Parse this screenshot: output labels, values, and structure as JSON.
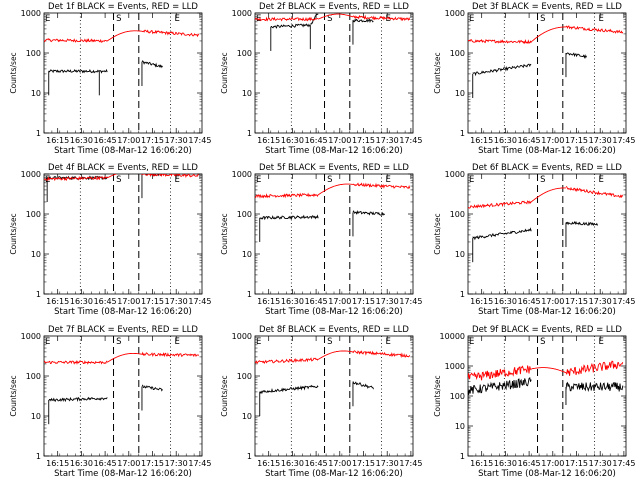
{
  "chart_data": {
    "type": "line",
    "ylabel": "Counts/sec",
    "xlabel": "Start Time (08-Mar-12 16:06:20)",
    "x_tick_labels": [
      "16:15",
      "16:30",
      "16:45",
      "17:00",
      "17:15",
      "17:30",
      "17:45"
    ],
    "x_tick_minutes": [
      8.67,
      23.67,
      38.67,
      53.67,
      68.67,
      83.67,
      98.67
    ],
    "x_range_minutes": [
      0,
      100
    ],
    "y_scale": "log",
    "y_tick_labels": [
      "1",
      "10",
      "100",
      "1000"
    ],
    "y_tick_values": [
      1,
      10,
      100,
      1000
    ],
    "grid": false,
    "dashed_marker_minutes": [
      44.0,
      60.0
    ],
    "dotted_marker_minutes": [
      23.0,
      80.0
    ],
    "marker_labels": [
      "E",
      "S",
      "E"
    ],
    "colors": {
      "events": "#000000",
      "lld": "#ff0000",
      "axes": "#000000"
    },
    "panels": [
      {
        "title": "Det 1f BLACK = Events, RED = LLD",
        "ymax": 1000,
        "series": [
          {
            "name": "Events",
            "color": "#000000",
            "segments": [
              [
                3,
                35
              ],
              [
                35,
                35
              ],
              [
                40,
                35
              ],
              [
                62,
                60
              ],
              [
                75,
                45
              ]
            ]
          },
          {
            "name": "LLD",
            "color": "#ff0000",
            "segments": [
              [
                0,
                210
              ],
              [
                40,
                200
              ],
              [
                62,
                350
              ],
              [
                98,
                280
              ]
            ]
          }
        ]
      },
      {
        "title": "Det 2f BLACK = Events, RED = LLD",
        "ymax": 1000,
        "series": [
          {
            "name": "Events",
            "color": "#000000",
            "segments": [
              [
                10,
                450
              ],
              [
                35,
                500
              ],
              [
                40,
                1000
              ],
              [
                62,
                650
              ],
              [
                75,
                650
              ]
            ]
          },
          {
            "name": "LLD",
            "color": "#ff0000",
            "segments": [
              [
                0,
                700
              ],
              [
                40,
                700
              ],
              [
                62,
                800
              ],
              [
                98,
                700
              ]
            ]
          }
        ]
      },
      {
        "title": "Det 3f BLACK = Events, RED = LLD",
        "ymax": 1000,
        "series": [
          {
            "name": "Events",
            "color": "#000000",
            "segments": [
              [
                3,
                30
              ],
              [
                40,
                50
              ],
              [
                62,
                100
              ],
              [
                75,
                80
              ]
            ]
          },
          {
            "name": "LLD",
            "color": "#ff0000",
            "segments": [
              [
                0,
                200
              ],
              [
                40,
                190
              ],
              [
                62,
                450
              ],
              [
                98,
                330
              ]
            ]
          }
        ]
      },
      {
        "title": "Det 4f BLACK = Events, RED = LLD",
        "ymax": 1000,
        "series": [
          {
            "name": "Events",
            "color": "#000000",
            "segments": [
              [
                2,
                800
              ],
              [
                40,
                800
              ],
              [
                62,
                1000
              ],
              [
                75,
                1000
              ]
            ]
          },
          {
            "name": "LLD",
            "color": "#ff0000",
            "segments": [
              [
                0,
                750
              ],
              [
                40,
                800
              ],
              [
                62,
                1000
              ],
              [
                98,
                900
              ]
            ]
          }
        ]
      },
      {
        "title": "Det 5f BLACK = Events, RED = LLD",
        "ymax": 1000,
        "series": [
          {
            "name": "Events",
            "color": "#000000",
            "segments": [
              [
                3,
                80
              ],
              [
                40,
                85
              ],
              [
                62,
                110
              ],
              [
                82,
                100
              ]
            ]
          },
          {
            "name": "LLD",
            "color": "#ff0000",
            "segments": [
              [
                0,
                280
              ],
              [
                40,
                300
              ],
              [
                62,
                550
              ],
              [
                98,
                460
              ]
            ]
          }
        ]
      },
      {
        "title": "Det 6f BLACK = Events, RED = LLD",
        "ymax": 1000,
        "series": [
          {
            "name": "Events",
            "color": "#000000",
            "segments": [
              [
                3,
                25
              ],
              [
                40,
                40
              ],
              [
                62,
                60
              ],
              [
                82,
                55
              ]
            ]
          },
          {
            "name": "LLD",
            "color": "#ff0000",
            "segments": [
              [
                0,
                150
              ],
              [
                40,
                200
              ],
              [
                62,
                450
              ],
              [
                98,
                270
              ]
            ]
          }
        ]
      },
      {
        "title": "Det 7f BLACK = Events, RED = LLD",
        "ymax": 1000,
        "series": [
          {
            "name": "Events",
            "color": "#000000",
            "segments": [
              [
                3,
                25
              ],
              [
                40,
                28
              ],
              [
                62,
                55
              ],
              [
                75,
                45
              ]
            ]
          },
          {
            "name": "LLD",
            "color": "#ff0000",
            "segments": [
              [
                0,
                220
              ],
              [
                40,
                220
              ],
              [
                62,
                350
              ],
              [
                98,
                330
              ]
            ]
          }
        ]
      },
      {
        "title": "Det 8f BLACK = Events, RED = LLD",
        "ymax": 1000,
        "series": [
          {
            "name": "Events",
            "color": "#000000",
            "segments": [
              [
                3,
                40
              ],
              [
                40,
                55
              ],
              [
                62,
                70
              ],
              [
                75,
                50
              ]
            ]
          },
          {
            "name": "LLD",
            "color": "#ff0000",
            "segments": [
              [
                0,
                220
              ],
              [
                40,
                260
              ],
              [
                62,
                400
              ],
              [
                98,
                320
              ]
            ]
          }
        ]
      },
      {
        "title": "Det 9f BLACK = Events, RED = LLD",
        "ymax": 10000,
        "series": [
          {
            "name": "Events",
            "color": "#000000",
            "segments": [
              [
                0,
                150
              ],
              [
                40,
                300
              ],
              [
                62,
                200
              ],
              [
                98,
                200
              ]
            ]
          },
          {
            "name": "LLD",
            "color": "#ff0000",
            "segments": [
              [
                0,
                400
              ],
              [
                40,
                800
              ],
              [
                62,
                600
              ],
              [
                98,
                1200
              ]
            ]
          }
        ]
      }
    ]
  }
}
